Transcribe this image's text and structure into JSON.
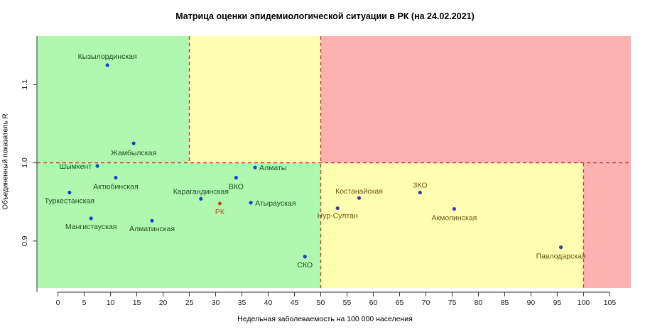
{
  "chart_data": {
    "type": "scatter",
    "title": "Матрица оценки эпидемиологической ситуации в РК (на 24.02.2021)",
    "xlabel": "Недельная заболеваемость на 100 000 населения",
    "ylabel": "Объединенный показатель R",
    "xlim": [
      -4,
      109
    ],
    "ylim": [
      0.84,
      1.162
    ],
    "x_ticks": [
      0,
      5,
      10,
      15,
      20,
      25,
      30,
      35,
      40,
      45,
      50,
      55,
      60,
      65,
      70,
      75,
      80,
      85,
      90,
      95,
      100,
      105
    ],
    "y_ticks": [
      0.9,
      1.0,
      1.1
    ],
    "y_tick_labels": [
      "0.9",
      "1.0",
      "1.1"
    ],
    "zones": [
      {
        "x": [
          -4,
          25
        ],
        "y": [
          0.84,
          1.162
        ],
        "color": "#b0f8b0"
      },
      {
        "x": [
          25,
          50
        ],
        "y": [
          1.0,
          1.162
        ],
        "color": "#fefeb0"
      },
      {
        "x": [
          25,
          50
        ],
        "y": [
          0.84,
          1.0
        ],
        "color": "#b0f8b0"
      },
      {
        "x": [
          50,
          109
        ],
        "y": [
          1.0,
          1.162
        ],
        "color": "#fdb2b2"
      },
      {
        "x": [
          50,
          100
        ],
        "y": [
          0.84,
          1.0
        ],
        "color": "#fefeb0"
      },
      {
        "x": [
          100,
          109
        ],
        "y": [
          0.84,
          1.0
        ],
        "color": "#fdb2b2"
      }
    ],
    "threshold_lines": [
      {
        "x": 25,
        "y": [
          1.0,
          1.162
        ]
      },
      {
        "x": 50,
        "y": [
          0.84,
          1.162
        ]
      },
      {
        "x": 100,
        "y": [
          0.84,
          1.0
        ]
      },
      {
        "y": 1.0,
        "x": [
          -4,
          109
        ]
      }
    ],
    "line_color": "#cc3333",
    "points": [
      {
        "label": "Кызылординская",
        "x": 9.4,
        "y": 1.125,
        "color": "#1a3fcf",
        "label_color": "#1e4d1e",
        "anchor": "middle",
        "dx": 0,
        "dy": -9
      },
      {
        "label": "Жамбылская",
        "x": 14.4,
        "y": 1.025,
        "color": "#1a3fcf",
        "label_color": "#1e4d1e",
        "anchor": "middle",
        "dx": 0,
        "dy": 17
      },
      {
        "label": "Шымкент",
        "x": 7.5,
        "y": 0.996,
        "color": "#1a3fcf",
        "label_color": "#1e4d1e",
        "anchor": "end",
        "dx": -8,
        "dy": 4
      },
      {
        "label": "Актюбинская",
        "x": 11.0,
        "y": 0.981,
        "color": "#1a3fcf",
        "label_color": "#1e4d1e",
        "anchor": "middle",
        "dx": 0,
        "dy": 16
      },
      {
        "label": "Туркестанская",
        "x": 2.2,
        "y": 0.962,
        "color": "#1a3fcf",
        "label_color": "#1e4d1e",
        "anchor": "middle",
        "dx": 0,
        "dy": 15
      },
      {
        "label": "Мангистауская",
        "x": 6.3,
        "y": 0.929,
        "color": "#1a3fcf",
        "label_color": "#1e4d1e",
        "anchor": "middle",
        "dx": 0,
        "dy": 15
      },
      {
        "label": "Алматинская",
        "x": 17.9,
        "y": 0.926,
        "color": "#1a3fcf",
        "label_color": "#1e4d1e",
        "anchor": "middle",
        "dx": 0,
        "dy": 15
      },
      {
        "label": "Карагандинская",
        "x": 27.2,
        "y": 0.954,
        "color": "#1a3fcf",
        "label_color": "#1e4d1e",
        "anchor": "middle",
        "dx": 0,
        "dy": -7
      },
      {
        "label": "РК",
        "x": 30.8,
        "y": 0.948,
        "color": "#b2541a",
        "label_color": "#b2541a",
        "anchor": "middle",
        "dx": 0,
        "dy": 15
      },
      {
        "label": "ВКО",
        "x": 33.9,
        "y": 0.981,
        "color": "#1a3fcf",
        "label_color": "#1e4d1e",
        "anchor": "middle",
        "dx": 0,
        "dy": 16
      },
      {
        "label": "Алматы",
        "x": 37.5,
        "y": 0.994,
        "color": "#1a3fcf",
        "label_color": "#1e4d1e",
        "anchor": "start",
        "dx": 6,
        "dy": 4
      },
      {
        "label": "Атырауская",
        "x": 36.7,
        "y": 0.949,
        "color": "#1a3fcf",
        "label_color": "#1e4d1e",
        "anchor": "start",
        "dx": 6,
        "dy": 4
      },
      {
        "label": "СКО",
        "x": 47.0,
        "y": 0.88,
        "color": "#1a3fcf",
        "label_color": "#1e4d1e",
        "anchor": "middle",
        "dx": 0,
        "dy": 15
      },
      {
        "label": "Нур-Султан",
        "x": 53.2,
        "y": 0.942,
        "color": "#3a3aa0",
        "label_color": "#6b5318",
        "anchor": "middle",
        "dx": 0,
        "dy": 14
      },
      {
        "label": "Костанайская",
        "x": 57.3,
        "y": 0.955,
        "color": "#3a3aa0",
        "label_color": "#6b5318",
        "anchor": "middle",
        "dx": 0,
        "dy": -6
      },
      {
        "label": "ЗКО",
        "x": 68.9,
        "y": 0.962,
        "color": "#3a3aa0",
        "label_color": "#6b5318",
        "anchor": "middle",
        "dx": 0,
        "dy": -7
      },
      {
        "label": "Акмолинская",
        "x": 75.4,
        "y": 0.941,
        "color": "#3a3aa0",
        "label_color": "#6b5318",
        "anchor": "middle",
        "dx": 0,
        "dy": 16
      },
      {
        "label": "Павлодарская",
        "x": 95.7,
        "y": 0.892,
        "color": "#3a3aa0",
        "label_color": "#6b5318",
        "anchor": "middle",
        "dx": 0,
        "dy": 16
      }
    ]
  }
}
